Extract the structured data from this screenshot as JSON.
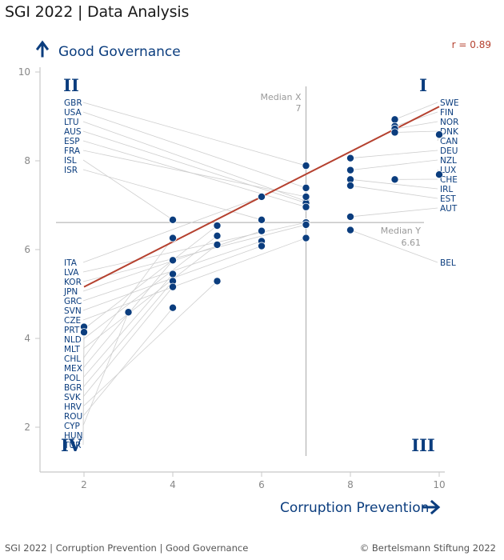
{
  "header": {
    "title": "SGI 2022 | Data Analysis"
  },
  "footer": {
    "left": "SGI 2022 | Corruption Prevention | Good Governance",
    "right": "© Bertelsmann Stiftung 2022"
  },
  "colors": {
    "dot": "#0b3d7e",
    "trend": "#b5412f",
    "axis": "#c8c8c8",
    "leader": "#cfcfcf",
    "text": "#0b3d7e",
    "corr": "#b5412f",
    "quadrant": "#0b3d7e"
  },
  "chart_data": {
    "type": "scatter",
    "xlabel": "Corruption Prevention",
    "ylabel": "Good Governance",
    "xlim": [
      1,
      10
    ],
    "ylim": [
      0.9,
      10
    ],
    "x_ticks": [
      2,
      4,
      6,
      8,
      10
    ],
    "y_ticks": [
      2,
      4,
      6,
      8,
      10
    ],
    "correlation": "r = 0.89",
    "quadrants": [
      "I",
      "II",
      "III",
      "IV"
    ],
    "median_x": {
      "label": "Median X",
      "value": 7,
      "value_label": "7"
    },
    "median_y": {
      "label": "Median Y",
      "value": 6.61,
      "value_label": "6.61"
    },
    "trendline": {
      "x": [
        2,
        10
      ],
      "y": [
        5.16,
        9.22
      ]
    },
    "points": [
      {
        "label": "SWE",
        "x": 9,
        "y": 8.93
      },
      {
        "label": "FIN",
        "x": 9,
        "y": 8.78
      },
      {
        "label": "NOR",
        "x": 9,
        "y": 8.72
      },
      {
        "label": "DNK",
        "x": 9,
        "y": 8.64
      },
      {
        "label": "CAN",
        "x": 10,
        "y": 8.59
      },
      {
        "label": "DEU",
        "x": 8,
        "y": 8.06
      },
      {
        "label": "NZL",
        "x": 8,
        "y": 7.79
      },
      {
        "label": "LUX",
        "x": 10,
        "y": 7.69
      },
      {
        "label": "CHE",
        "x": 9,
        "y": 7.58
      },
      {
        "label": "IRL",
        "x": 8,
        "y": 7.58
      },
      {
        "label": "EST",
        "x": 8,
        "y": 7.44
      },
      {
        "label": "AUT",
        "x": 8,
        "y": 6.74
      },
      {
        "label": "BEL",
        "x": 8,
        "y": 6.44
      },
      {
        "label": "GBR",
        "x": 7,
        "y": 7.89
      },
      {
        "label": "USA",
        "x": 7,
        "y": 7.39
      },
      {
        "label": "LTU",
        "x": 7,
        "y": 7.09
      },
      {
        "label": "AUS",
        "x": 7,
        "y": 7.05
      },
      {
        "label": "ESP",
        "x": 7,
        "y": 6.96
      },
      {
        "label": "FRA",
        "x": 7,
        "y": 7.19
      },
      {
        "label": "ISL",
        "x": 4,
        "y": 6.67
      },
      {
        "label": "ISR",
        "x": 6,
        "y": 6.67
      },
      {
        "label": "ITA",
        "x": 6,
        "y": 7.19
      },
      {
        "label": "LVA",
        "x": 7,
        "y": 6.61
      },
      {
        "label": "KOR",
        "x": 7,
        "y": 6.56
      },
      {
        "label": "JPN",
        "x": 6,
        "y": 6.42
      },
      {
        "label": "GRC",
        "x": 6,
        "y": 6.19
      },
      {
        "label": "SVN",
        "x": 6,
        "y": 6.08
      },
      {
        "label": "CZE",
        "x": 7,
        "y": 6.26
      },
      {
        "label": "PRT",
        "x": 5,
        "y": 6.54
      },
      {
        "label": "NLD",
        "x": 5,
        "y": 6.31
      },
      {
        "label": "MLT",
        "x": 5,
        "y": 6.11
      },
      {
        "label": "CHL",
        "x": 4,
        "y": 6.26
      },
      {
        "label": "MEX",
        "x": 4,
        "y": 5.76
      },
      {
        "label": "POL",
        "x": 4,
        "y": 5.45
      },
      {
        "label": "BGR",
        "x": 4,
        "y": 5.29
      },
      {
        "label": "SVK",
        "x": 4,
        "y": 5.16
      },
      {
        "label": "HRV",
        "x": 5,
        "y": 5.29
      },
      {
        "label": "ROU",
        "x": 4,
        "y": 4.69
      },
      {
        "label": "CYP",
        "x": 3,
        "y": 4.59
      },
      {
        "label": "HUN",
        "x": 2,
        "y": 4.26
      },
      {
        "label": "TUR",
        "x": 2,
        "y": 4.14
      }
    ],
    "left_labels_top": [
      "GBR",
      "USA",
      "LTU",
      "AUS",
      "ESP",
      "FRA",
      "ISL",
      "ISR"
    ],
    "left_labels_bottom": [
      "ITA",
      "LVA",
      "KOR",
      "JPN",
      "GRC",
      "SVN",
      "CZE",
      "PRT",
      "NLD",
      "MLT",
      "CHL",
      "MEX",
      "POL",
      "BGR",
      "SVK",
      "HRV",
      "ROU",
      "CYP",
      "HUN",
      "TUR"
    ],
    "right_labels": [
      "SWE",
      "FIN",
      "NOR",
      "DNK",
      "CAN",
      "DEU",
      "NZL",
      "LUX",
      "CHE",
      "IRL",
      "EST",
      "AUT",
      "BEL"
    ]
  }
}
